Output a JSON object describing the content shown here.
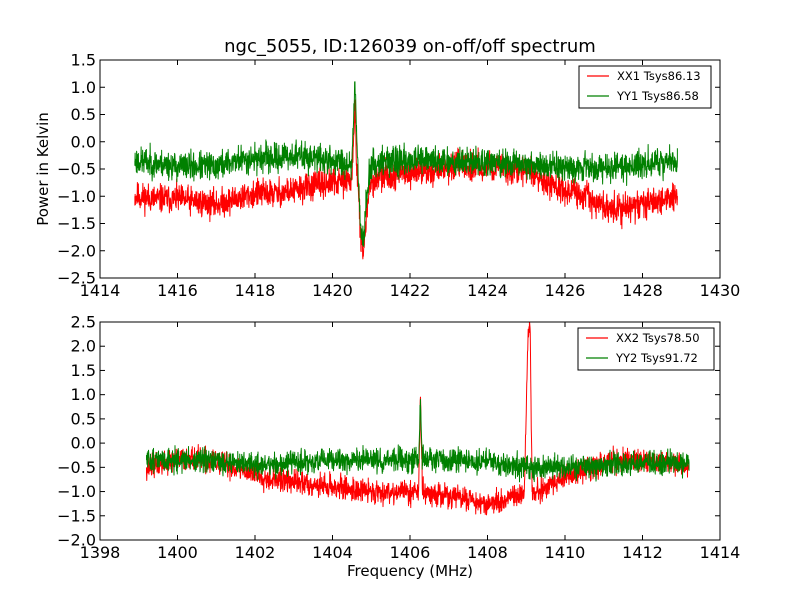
{
  "chart_data": [
    {
      "type": "line",
      "title": "ngc_5055, ID:126039 on-off/off spectrum",
      "xlabel": "",
      "ylabel": "Power in Kelvin",
      "xlim": [
        1414,
        1430
      ],
      "ylim": [
        -2.5,
        1.5
      ],
      "xticks": [
        "1414",
        "1416",
        "1418",
        "1420",
        "1422",
        "1424",
        "1426",
        "1428",
        "1430"
      ],
      "yticks": [
        "1.5",
        "1.0",
        "0.5",
        "0.0",
        "−0.5",
        "−1.0",
        "−1.5",
        "−2.0",
        "−2.5"
      ],
      "grid": false,
      "legend_position": "top-right",
      "series": [
        {
          "name": "XX1 Tsys86.13",
          "color": "#ff0000",
          "noise": 0.16,
          "seed": 11,
          "x": [
            1414.9,
            1415.5,
            1416.0,
            1416.5,
            1417.0,
            1417.5,
            1418.0,
            1418.5,
            1419.0,
            1419.5,
            1420.0,
            1420.5,
            1420.58,
            1420.62,
            1420.68,
            1420.74,
            1420.8,
            1420.86,
            1420.95,
            1421.2,
            1421.5,
            1422.0,
            1422.5,
            1423.0,
            1423.5,
            1424.0,
            1424.5,
            1425.0,
            1425.5,
            1426.0,
            1426.5,
            1427.0,
            1427.5,
            1428.0,
            1428.5,
            1428.9
          ],
          "y": [
            -1.0,
            -1.05,
            -1.05,
            -1.1,
            -1.15,
            -1.05,
            -0.95,
            -0.95,
            -0.9,
            -0.8,
            -0.75,
            -0.7,
            0.7,
            -0.4,
            -1.1,
            -1.8,
            -2.05,
            -1.5,
            -0.8,
            -0.65,
            -0.6,
            -0.55,
            -0.55,
            -0.45,
            -0.45,
            -0.45,
            -0.5,
            -0.55,
            -0.7,
            -0.9,
            -1.0,
            -1.2,
            -1.25,
            -1.15,
            -1.05,
            -1.0
          ]
        },
        {
          "name": "YY1 Tsys86.58",
          "color": "#008000",
          "noise": 0.16,
          "seed": 23,
          "x": [
            1414.9,
            1415.5,
            1416.0,
            1416.5,
            1417.0,
            1417.5,
            1418.0,
            1418.5,
            1419.0,
            1419.5,
            1420.0,
            1420.5,
            1420.58,
            1420.62,
            1420.68,
            1420.74,
            1420.8,
            1420.86,
            1420.95,
            1421.2,
            1421.5,
            1422.0,
            1422.5,
            1423.0,
            1423.5,
            1424.0,
            1424.5,
            1425.0,
            1425.5,
            1426.0,
            1426.5,
            1427.0,
            1427.5,
            1428.0,
            1428.5,
            1428.9
          ],
          "y": [
            -0.35,
            -0.4,
            -0.45,
            -0.45,
            -0.45,
            -0.35,
            -0.3,
            -0.3,
            -0.25,
            -0.3,
            -0.35,
            -0.4,
            1.1,
            0.3,
            -0.9,
            -1.7,
            -1.85,
            -1.2,
            -0.5,
            -0.35,
            -0.35,
            -0.35,
            -0.35,
            -0.35,
            -0.35,
            -0.4,
            -0.4,
            -0.4,
            -0.45,
            -0.45,
            -0.45,
            -0.5,
            -0.45,
            -0.4,
            -0.4,
            -0.35
          ]
        }
      ]
    },
    {
      "type": "line",
      "title": "",
      "xlabel": "Frequency (MHz)",
      "ylabel": "",
      "xlim": [
        1398,
        1414
      ],
      "ylim": [
        -2.0,
        2.5
      ],
      "xticks": [
        "1398",
        "1400",
        "1402",
        "1404",
        "1406",
        "1408",
        "1410",
        "1412",
        "1414"
      ],
      "yticks": [
        "2.5",
        "2.0",
        "1.5",
        "1.0",
        "0.5",
        "0.0",
        "−0.5",
        "−1.0",
        "−1.5",
        "−2.0"
      ],
      "grid": false,
      "legend_position": "top-right",
      "series": [
        {
          "name": "XX2 Tsys78.50",
          "color": "#ff0000",
          "noise": 0.15,
          "seed": 37,
          "x": [
            1399.2,
            1399.8,
            1400.3,
            1400.9,
            1401.5,
            1402.0,
            1402.5,
            1403.0,
            1403.5,
            1404.0,
            1404.5,
            1405.0,
            1405.5,
            1406.0,
            1406.22,
            1406.27,
            1406.32,
            1406.5,
            1407.0,
            1407.5,
            1408.0,
            1408.5,
            1408.95,
            1409.05,
            1409.1,
            1409.15,
            1409.5,
            1410.0,
            1410.5,
            1411.0,
            1411.5,
            1412.0,
            1412.5,
            1413.2
          ],
          "y": [
            -0.5,
            -0.4,
            -0.3,
            -0.4,
            -0.5,
            -0.65,
            -0.75,
            -0.8,
            -0.85,
            -0.9,
            -0.95,
            -1.0,
            -1.0,
            -1.0,
            -1.0,
            0.95,
            -1.0,
            -1.05,
            -1.1,
            -1.15,
            -1.25,
            -1.2,
            -1.0,
            2.35,
            2.35,
            -1.0,
            -0.95,
            -0.7,
            -0.55,
            -0.4,
            -0.35,
            -0.35,
            -0.4,
            -0.45
          ]
        },
        {
          "name": "YY2 Tsys91.72",
          "color": "#008000",
          "noise": 0.15,
          "seed": 51,
          "x": [
            1399.2,
            1399.8,
            1400.3,
            1400.9,
            1401.5,
            1402.0,
            1402.5,
            1403.0,
            1403.5,
            1404.0,
            1404.5,
            1405.0,
            1405.5,
            1406.0,
            1406.22,
            1406.27,
            1406.32,
            1406.5,
            1407.0,
            1407.5,
            1408.0,
            1408.5,
            1409.0,
            1409.5,
            1410.0,
            1410.5,
            1411.0,
            1411.5,
            1412.0,
            1412.5,
            1413.2
          ],
          "y": [
            -0.35,
            -0.35,
            -0.35,
            -0.4,
            -0.4,
            -0.45,
            -0.45,
            -0.4,
            -0.4,
            -0.35,
            -0.35,
            -0.35,
            -0.35,
            -0.35,
            -0.35,
            0.9,
            -0.35,
            -0.35,
            -0.35,
            -0.35,
            -0.4,
            -0.45,
            -0.5,
            -0.5,
            -0.5,
            -0.5,
            -0.45,
            -0.45,
            -0.4,
            -0.4,
            -0.4
          ]
        }
      ]
    }
  ]
}
